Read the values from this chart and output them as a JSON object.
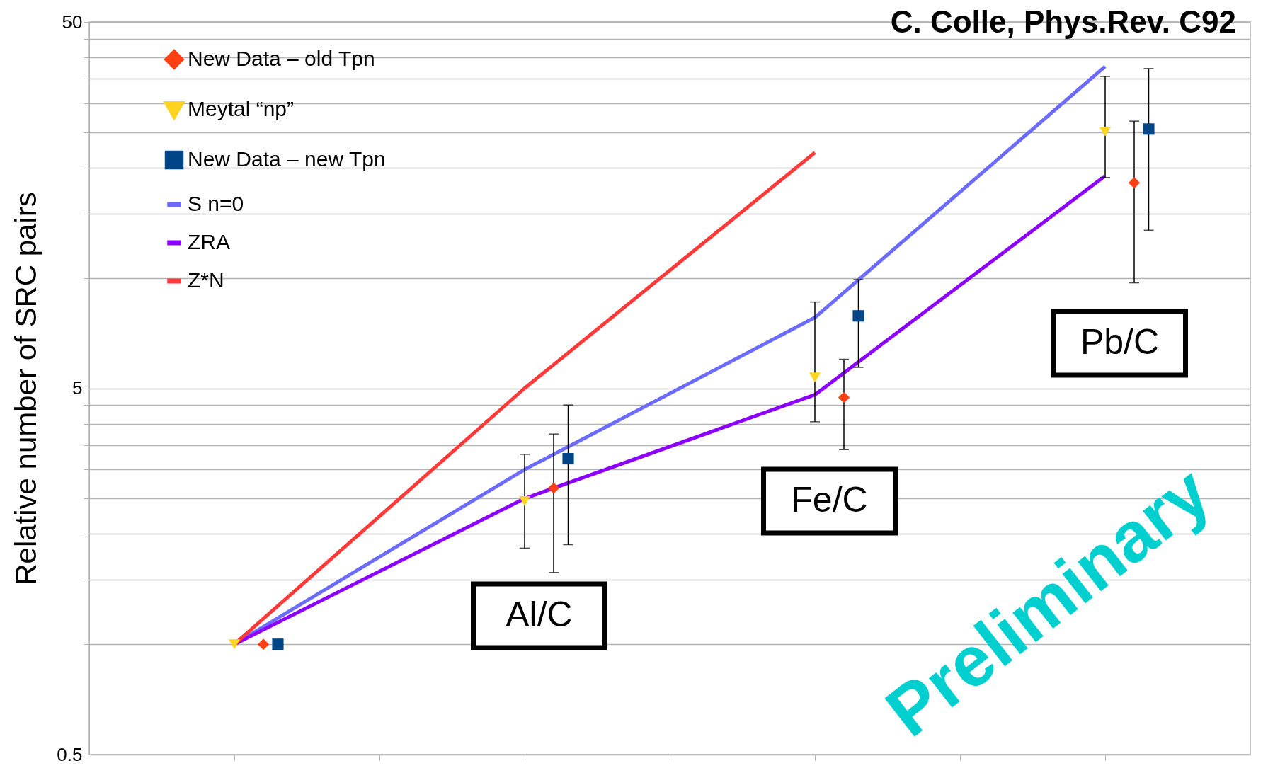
{
  "chart_data": {
    "type": "scatter",
    "ylabel": "Relative number of SRC pairs",
    "log": "y",
    "grid": "y",
    "legend": "top left",
    "tick_labels": "y",
    "categories": [
      null,
      null,
      null,
      null
    ],
    "ylim": [
      0.5,
      50
    ],
    "yticks": [
      0.5,
      {
        "value": 1,
        "label": null
      },
      {
        "value": 1.5,
        "label": null
      },
      {
        "value": 2,
        "label": null
      },
      {
        "value": 2.5,
        "label": null
      },
      {
        "value": 3,
        "label": null
      },
      {
        "value": 3.5,
        "label": null
      },
      {
        "value": 4,
        "label": null
      },
      {
        "value": 4.5,
        "label": null
      },
      5,
      {
        "value": 10,
        "label": null
      },
      {
        "value": 15,
        "label": null
      },
      {
        "value": 20,
        "label": null
      },
      {
        "value": 25,
        "label": null
      },
      {
        "value": 30,
        "label": null
      },
      {
        "value": 35,
        "label": null
      },
      {
        "value": 40,
        "label": null
      },
      {
        "value": 45,
        "label": null
      },
      50
    ],
    "series": [
      {
        "name": "New Data – old Tpn",
        "marker": "diamond",
        "color": "#ff4015",
        "values": [
          1.0,
          2.67,
          4.72,
          18.2
        ],
        "errors": [
          null,
          [
            1.57,
            3.75
          ],
          [
            3.4,
            6.0
          ],
          [
            9.7,
            26.8
          ]
        ]
      },
      {
        "name": "Meytal “np”",
        "marker": "triangle",
        "color": "#ffd320",
        "values": [
          1.0,
          2.46,
          5.35,
          25.1
        ],
        "errors": [
          null,
          [
            1.83,
            3.3
          ],
          [
            4.05,
            8.6
          ],
          [
            18.8,
            35.5
          ]
        ]
      },
      {
        "name": "New Data – new Tpn",
        "marker": "square",
        "color": "#004586",
        "values": [
          1.0,
          3.21,
          7.88,
          25.5
        ],
        "errors": [
          null,
          [
            1.87,
            4.5
          ],
          [
            5.7,
            9.9
          ],
          [
            13.5,
            37.3
          ]
        ]
      },
      {
        "name": "S n=0",
        "type": "line",
        "color": "#6b6bff",
        "values": [
          1,
          3.0,
          7.8,
          37.8
        ]
      },
      {
        "name": "ZRA",
        "type": "line",
        "color": "#8c00ff",
        "values": [
          1,
          2.5,
          4.8,
          19
        ]
      },
      {
        "name": "Z*N",
        "type": "line",
        "color": "#ff3838",
        "values": [
          1,
          5,
          22,
          null
        ]
      }
    ],
    "annotations": [
      "C. Colle, Phys.Rev. C92",
      "Al/C",
      "Fe/C",
      "Pb/C",
      "Preliminary"
    ]
  }
}
